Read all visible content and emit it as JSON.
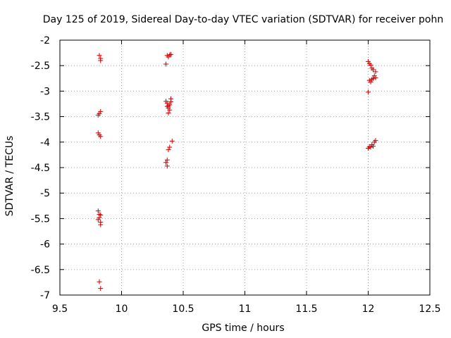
{
  "chart_data": {
    "type": "scatter",
    "title": "Day 125 of 2019, Sidereal Day-to-day VTEC variation (SDTVAR) for receiver pohn",
    "xlabel": "GPS time / hours",
    "ylabel": "SDTVAR / TECUs",
    "xlim": [
      9.5,
      12.5
    ],
    "ylim": [
      -7,
      -2
    ],
    "xticks": [
      9.5,
      10,
      10.5,
      11,
      11.5,
      12,
      12.5
    ],
    "xtick_labels": [
      "9.5",
      "10",
      "10.5",
      "11",
      "11.5",
      "12",
      "12.5"
    ],
    "yticks": [
      -7,
      -6.5,
      -6,
      -5.5,
      -5,
      -4.5,
      -4,
      -3.5,
      -3,
      -2.5,
      -2
    ],
    "ytick_labels": [
      "-7",
      "-6.5",
      "-6",
      "-5.5",
      "-5",
      "-4.5",
      "-4",
      "-3.5",
      "-3",
      "-2.5",
      "-2"
    ],
    "grid": true,
    "marker": "+",
    "color": "#cc0000",
    "series": [
      {
        "name": "SDTVAR",
        "x": [
          9.82,
          9.83,
          9.83,
          9.81,
          9.82,
          9.83,
          9.81,
          9.82,
          9.83,
          9.81,
          9.82,
          9.82,
          9.83,
          9.81,
          9.83,
          9.83,
          9.82,
          9.83,
          10.36,
          10.38,
          10.39,
          10.4,
          10.37,
          10.36,
          10.37,
          10.38,
          10.39,
          10.4,
          10.38,
          10.4,
          10.39,
          10.37,
          10.38,
          10.41,
          10.39,
          10.38,
          10.37,
          10.36,
          10.37,
          12.0,
          12.01,
          12.02,
          12.03,
          12.04,
          12.06,
          12.01,
          12.02,
          12.03,
          12.04,
          12.06,
          12.05,
          12.0,
          12.0,
          12.01,
          12.02,
          12.03,
          12.05,
          12.04,
          12.06
        ],
        "y": [
          -2.3,
          -2.36,
          -2.4,
          -3.47,
          -3.44,
          -3.4,
          -3.82,
          -3.86,
          -3.89,
          -5.35,
          -5.42,
          -5.48,
          -5.43,
          -5.52,
          -5.57,
          -5.62,
          -6.74,
          -6.87,
          -2.47,
          -2.33,
          -2.29,
          -2.28,
          -2.3,
          -3.2,
          -3.24,
          -3.29,
          -3.27,
          -3.21,
          -3.33,
          -3.15,
          -3.37,
          -3.3,
          -3.43,
          -3.98,
          -4.1,
          -4.15,
          -4.35,
          -4.4,
          -4.47,
          -2.42,
          -2.46,
          -2.49,
          -2.55,
          -2.58,
          -2.62,
          -2.79,
          -2.82,
          -2.77,
          -2.75,
          -2.74,
          -2.7,
          -3.02,
          -4.12,
          -4.09,
          -4.1,
          -4.05,
          -4.0,
          -4.08,
          -3.97
        ]
      }
    ]
  }
}
